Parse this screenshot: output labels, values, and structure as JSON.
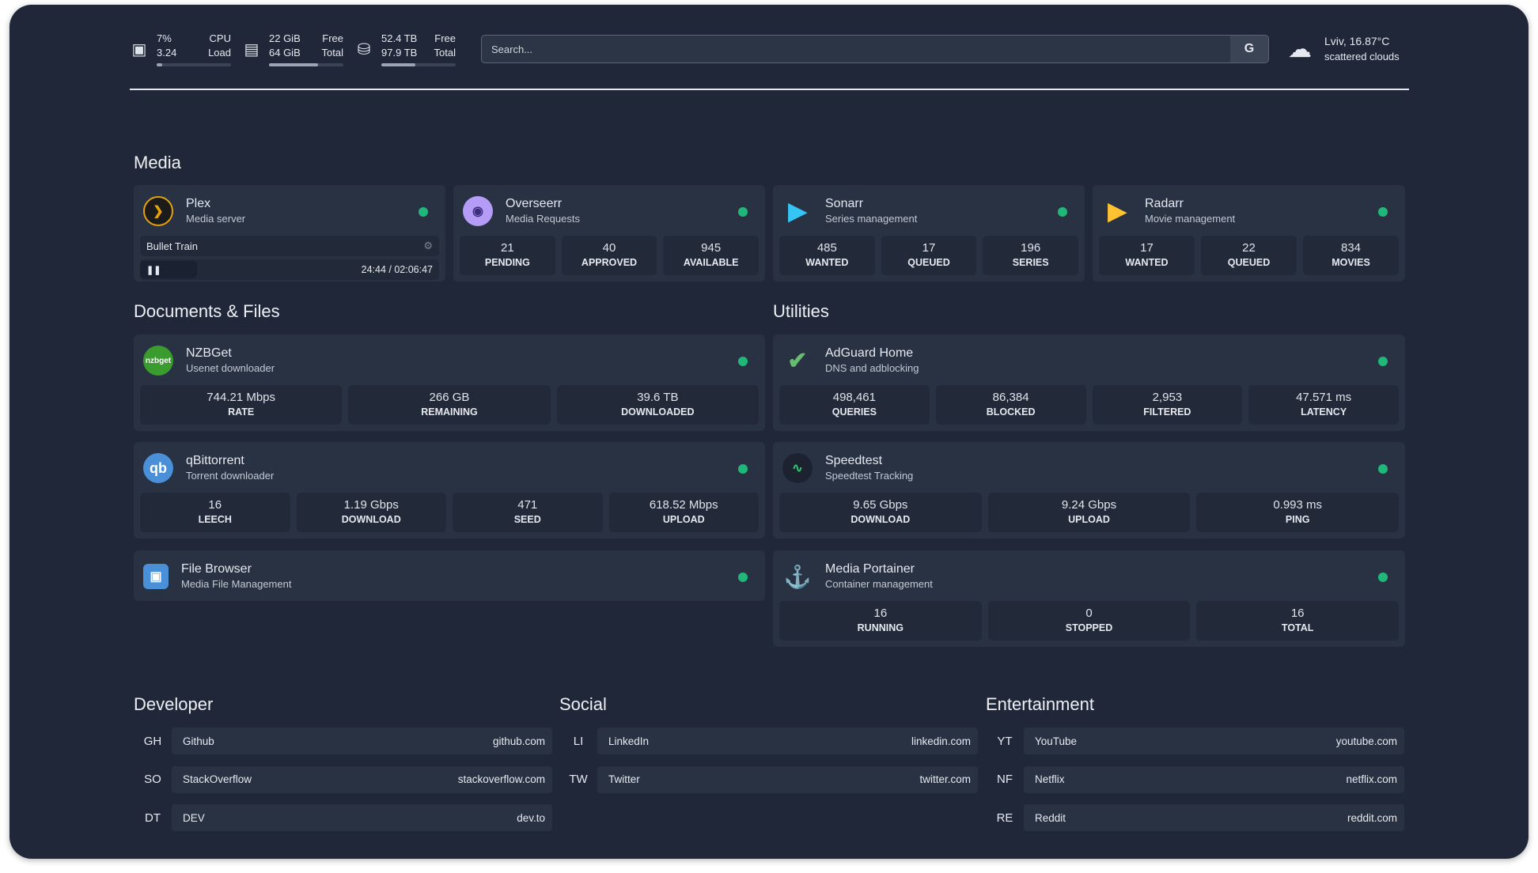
{
  "header": {
    "cpu": {
      "icon": "cpu-icon",
      "value1": "7%",
      "value2": "3.24",
      "label1": "CPU",
      "label2": "Load",
      "usage_percent": 7
    },
    "memory": {
      "icon": "memory-icon",
      "value1": "22 GiB",
      "value2": "64 GiB",
      "label1": "Free",
      "label2": "Total",
      "usage_percent": 66
    },
    "disk": {
      "icon": "disk-icon",
      "value1": "52.4 TB",
      "value2": "97.9 TB",
      "label1": "Free",
      "label2": "Total",
      "usage_percent": 46
    },
    "search": {
      "placeholder": "Search...",
      "button": "G"
    },
    "weather": {
      "icon": "cloud-sun-icon",
      "location": "Lviv, 16.87°C",
      "description": "scattered clouds"
    }
  },
  "sections": {
    "media": "Media",
    "documents": "Documents & Files",
    "utilities": "Utilities",
    "developer": "Developer",
    "social": "Social",
    "entertainment": "Entertainment"
  },
  "status_color": "#1fb87a",
  "media": [
    {
      "name": "Plex",
      "sub": "Media server",
      "now_playing": {
        "title": "Bullet Train",
        "time": "24:44 / 02:06:47",
        "state": "paused"
      }
    },
    {
      "name": "Overseerr",
      "sub": "Media Requests",
      "stats": [
        {
          "v": "21",
          "l": "PENDING"
        },
        {
          "v": "40",
          "l": "APPROVED"
        },
        {
          "v": "945",
          "l": "AVAILABLE"
        }
      ]
    },
    {
      "name": "Sonarr",
      "sub": "Series management",
      "stats": [
        {
          "v": "485",
          "l": "WANTED"
        },
        {
          "v": "17",
          "l": "QUEUED"
        },
        {
          "v": "196",
          "l": "SERIES"
        }
      ]
    },
    {
      "name": "Radarr",
      "sub": "Movie management",
      "stats": [
        {
          "v": "17",
          "l": "WANTED"
        },
        {
          "v": "22",
          "l": "QUEUED"
        },
        {
          "v": "834",
          "l": "MOVIES"
        }
      ]
    }
  ],
  "docs": [
    {
      "name": "NZBGet",
      "sub": "Usenet downloader",
      "logo": "nzbget",
      "stats": [
        {
          "v": "744.21 Mbps",
          "l": "RATE"
        },
        {
          "v": "266 GB",
          "l": "REMAINING"
        },
        {
          "v": "39.6 TB",
          "l": "DOWNLOADED"
        }
      ]
    },
    {
      "name": "qBittorrent",
      "sub": "Torrent downloader",
      "logo": "qb",
      "stats": [
        {
          "v": "16",
          "l": "LEECH"
        },
        {
          "v": "1.19 Gbps",
          "l": "DOWNLOAD"
        },
        {
          "v": "471",
          "l": "SEED"
        },
        {
          "v": "618.52 Mbps",
          "l": "UPLOAD"
        }
      ]
    },
    {
      "name": "File Browser",
      "sub": "Media File Management"
    }
  ],
  "utils": [
    {
      "name": "AdGuard Home",
      "sub": "DNS and adblocking",
      "stats": [
        {
          "v": "498,461",
          "l": "QUERIES"
        },
        {
          "v": "86,384",
          "l": "BLOCKED"
        },
        {
          "v": "2,953",
          "l": "FILTERED"
        },
        {
          "v": "47.571 ms",
          "l": "LATENCY"
        }
      ]
    },
    {
      "name": "Speedtest",
      "sub": "Speedtest Tracking",
      "stats": [
        {
          "v": "9.65 Gbps",
          "l": "DOWNLOAD"
        },
        {
          "v": "9.24 Gbps",
          "l": "UPLOAD"
        },
        {
          "v": "0.993 ms",
          "l": "PING"
        }
      ]
    },
    {
      "name": "Media Portainer",
      "sub": "Container management",
      "stats": [
        {
          "v": "16",
          "l": "RUNNING"
        },
        {
          "v": "0",
          "l": "STOPPED"
        },
        {
          "v": "16",
          "l": "TOTAL"
        }
      ]
    }
  ],
  "bookmarks": {
    "developer": [
      {
        "ab": "GH",
        "name": "Github",
        "url": "github.com"
      },
      {
        "ab": "SO",
        "name": "StackOverflow",
        "url": "stackoverflow.com"
      },
      {
        "ab": "DT",
        "name": "DEV",
        "url": "dev.to"
      }
    ],
    "social": [
      {
        "ab": "LI",
        "name": "LinkedIn",
        "url": "linkedin.com"
      },
      {
        "ab": "TW",
        "name": "Twitter",
        "url": "twitter.com"
      }
    ],
    "entertainment": [
      {
        "ab": "YT",
        "name": "YouTube",
        "url": "youtube.com"
      },
      {
        "ab": "NF",
        "name": "Netflix",
        "url": "netflix.com"
      },
      {
        "ab": "RE",
        "name": "Reddit",
        "url": "reddit.com"
      }
    ]
  }
}
